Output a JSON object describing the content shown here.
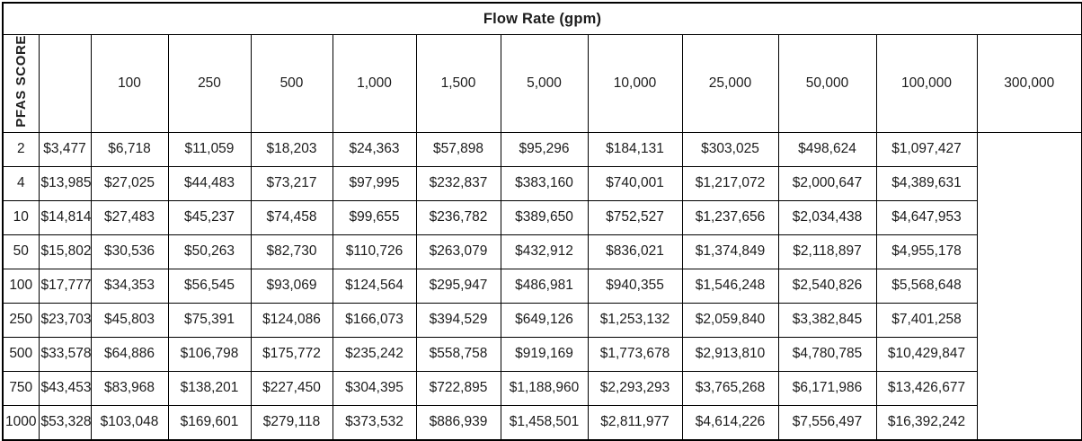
{
  "table": {
    "title": "Flow Rate (gpm)",
    "row_axis_label": "PFAS SCORE",
    "columns": [
      "100",
      "250",
      "500",
      "1,000",
      "1,500",
      "5,000",
      "10,000",
      "25,000",
      "50,000",
      "100,000",
      "300,000"
    ],
    "rows": [
      {
        "score": "2",
        "values": [
          "$3,477",
          "$6,718",
          "$11,059",
          "$18,203",
          "$24,363",
          "$57,898",
          "$95,296",
          "$184,131",
          "$303,025",
          "$498,624",
          "$1,097,427"
        ]
      },
      {
        "score": "4",
        "values": [
          "$13,985",
          "$27,025",
          "$44,483",
          "$73,217",
          "$97,995",
          "$232,837",
          "$383,160",
          "$740,001",
          "$1,217,072",
          "$2,000,647",
          "$4,389,631"
        ]
      },
      {
        "score": "10",
        "values": [
          "$14,814",
          "$27,483",
          "$45,237",
          "$74,458",
          "$99,655",
          "$236,782",
          "$389,650",
          "$752,527",
          "$1,237,656",
          "$2,034,438",
          "$4,647,953"
        ]
      },
      {
        "score": "50",
        "values": [
          "$15,802",
          "$30,536",
          "$50,263",
          "$82,730",
          "$110,726",
          "$263,079",
          "$432,912",
          "$836,021",
          "$1,374,849",
          "$2,118,897",
          "$4,955,178"
        ]
      },
      {
        "score": "100",
        "values": [
          "$17,777",
          "$34,353",
          "$56,545",
          "$93,069",
          "$124,564",
          "$295,947",
          "$486,981",
          "$940,355",
          "$1,546,248",
          "$2,540,826",
          "$5,568,648"
        ]
      },
      {
        "score": "250",
        "values": [
          "$23,703",
          "$45,803",
          "$75,391",
          "$124,086",
          "$166,073",
          "$394,529",
          "$649,126",
          "$1,253,132",
          "$2,059,840",
          "$3,382,845",
          "$7,401,258"
        ]
      },
      {
        "score": "500",
        "values": [
          "$33,578",
          "$64,886",
          "$106,798",
          "$175,772",
          "$235,242",
          "$558,758",
          "$919,169",
          "$1,773,678",
          "$2,913,810",
          "$4,780,785",
          "$10,429,847"
        ]
      },
      {
        "score": "750",
        "values": [
          "$43,453",
          "$83,968",
          "$138,201",
          "$227,450",
          "$304,395",
          "$722,895",
          "$1,188,960",
          "$2,293,293",
          "$3,765,268",
          "$6,171,986",
          "$13,426,677"
        ]
      },
      {
        "score": "1000",
        "values": [
          "$53,328",
          "$103,048",
          "$169,601",
          "$279,118",
          "$373,532",
          "$886,939",
          "$1,458,501",
          "$2,811,977",
          "$4,614,226",
          "$7,556,497",
          "$16,392,242"
        ]
      }
    ]
  },
  "chart_data": {
    "type": "table",
    "title": "Flow Rate (gpm)",
    "column_axis_label": "Flow Rate (gpm)",
    "row_axis_label": "PFAS SCORE",
    "columns_gpm": [
      100,
      250,
      500,
      1000,
      1500,
      5000,
      10000,
      25000,
      50000,
      100000,
      300000
    ],
    "pfas_scores": [
      2,
      4,
      10,
      50,
      100,
      250,
      500,
      750,
      1000
    ],
    "values_usd": [
      [
        3477,
        6718,
        11059,
        18203,
        24363,
        57898,
        95296,
        184131,
        303025,
        498624,
        1097427
      ],
      [
        13985,
        27025,
        44483,
        73217,
        97995,
        232837,
        383160,
        740001,
        1217072,
        2000647,
        4389631
      ],
      [
        14814,
        27483,
        45237,
        74458,
        99655,
        236782,
        389650,
        752527,
        1237656,
        2034438,
        4647953
      ],
      [
        15802,
        30536,
        50263,
        82730,
        110726,
        263079,
        432912,
        836021,
        1374849,
        2118897,
        4955178
      ],
      [
        17777,
        34353,
        56545,
        93069,
        124564,
        295947,
        486981,
        940355,
        1546248,
        2540826,
        5568648
      ],
      [
        23703,
        45803,
        75391,
        124086,
        166073,
        394529,
        649126,
        1253132,
        2059840,
        3382845,
        7401258
      ],
      [
        33578,
        64886,
        106798,
        175772,
        235242,
        558758,
        919169,
        1773678,
        2913810,
        4780785,
        10429847
      ],
      [
        43453,
        83968,
        138201,
        227450,
        304395,
        722895,
        1188960,
        2293293,
        3765268,
        6171986,
        13426677
      ],
      [
        53328,
        103048,
        169601,
        279118,
        373532,
        886939,
        1458501,
        2811977,
        4614226,
        7556497,
        16392242
      ]
    ]
  },
  "colors": {
    "background": "#ffffff",
    "border": "#000000",
    "text": "#1c1c1c"
  }
}
